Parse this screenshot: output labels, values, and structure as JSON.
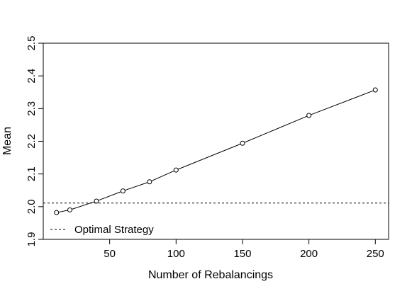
{
  "chart_data": {
    "type": "line",
    "title": "",
    "xlabel": "Number of Rebalancings",
    "ylabel": "Mean",
    "xlim": [
      0,
      260
    ],
    "ylim": [
      1.9,
      2.5
    ],
    "x_ticks": [
      50,
      100,
      150,
      200,
      250
    ],
    "y_ticks": [
      1.9,
      2.0,
      2.1,
      2.2,
      2.3,
      2.4,
      2.5
    ],
    "x_tick_labels": [
      "50",
      "100",
      "150",
      "200",
      "250"
    ],
    "y_tick_labels": [
      "1.9",
      "2.0",
      "2.1",
      "2.2",
      "2.3",
      "2.4",
      "2.5"
    ],
    "grid": false,
    "legend_position": "bottom-left",
    "series": [
      {
        "x": [
          10,
          20,
          40,
          60,
          80,
          100,
          150,
          200,
          250
        ],
        "values": [
          1.982,
          1.99,
          2.017,
          2.048,
          2.076,
          2.112,
          2.194,
          2.279,
          2.357
        ],
        "color": "#000000",
        "marker": "open-circle",
        "line": "solid"
      }
    ],
    "reference_lines": [
      {
        "name": "Optimal Strategy",
        "y": 2.011,
        "style": "dashed",
        "color": "#000000"
      }
    ],
    "legend": {
      "entries": [
        "Optimal Strategy"
      ]
    }
  }
}
